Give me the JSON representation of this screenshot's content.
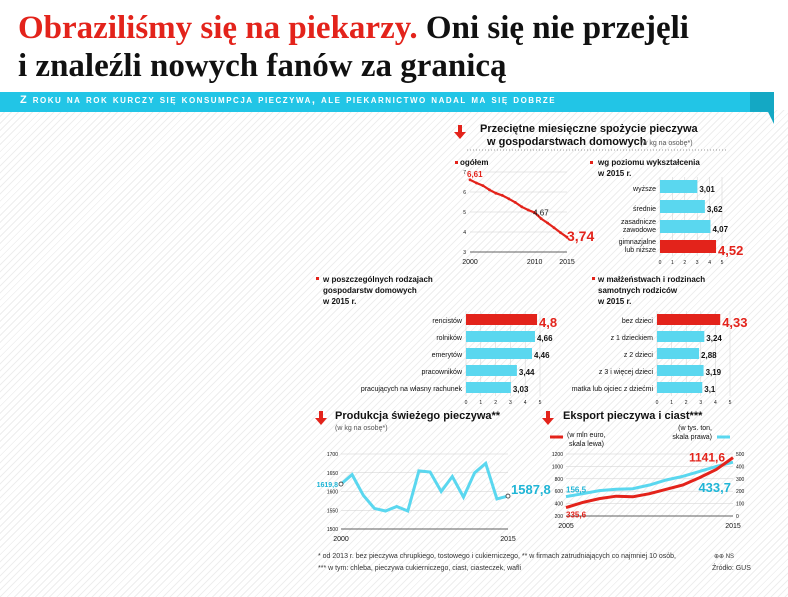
{
  "headline": {
    "red": "Obraziliśmy się na piekarzy.",
    "black1": "Oni się nie przejęli",
    "black2": "i znaleźli nowych fanów za granicą"
  },
  "subtitle": "Z roku na rok kurczy się konsumpcja pieczywa, ale piekarnictwo nadal ma się dobrze",
  "section": {
    "title1": "Przeciętne miesięczne spożycie pieczywa",
    "title2": "w gospodarstwach domowych",
    "unit": "(w kg na osobę*)"
  },
  "footnotes": [
    "* od 2013 r. bez pieczywa chrupkiego, tostowego i cukierniczego, ** w firmach zatrudniających co najmniej 10 osób,",
    "*** w tym: chleba, pieczywa cukierniczego, ciast, ciasteczek, wafli"
  ],
  "credit": "⊕⊕ NS",
  "source": "Źródło: GUS",
  "colors": {
    "red": "#e3231b",
    "cyan": "#5ad7ef",
    "ribbon": "#22c5e6"
  },
  "chart_data": [
    {
      "id": "ogolem",
      "type": "line",
      "title": "ogółem",
      "x": [
        2000,
        2001,
        2002,
        2003,
        2004,
        2005,
        2006,
        2007,
        2008,
        2009,
        2010,
        2011,
        2012,
        2013,
        2014,
        2015
      ],
      "values": [
        6.61,
        6.45,
        6.32,
        6.11,
        5.94,
        5.83,
        5.66,
        5.48,
        5.26,
        5.1,
        4.97,
        4.67,
        4.45,
        4.21,
        3.97,
        3.74
      ],
      "xticks": [
        "2000",
        "2010",
        "2015"
      ],
      "yticks": [
        "3",
        "4",
        "5",
        "6",
        "7"
      ],
      "ylim": [
        3,
        7
      ],
      "labels": [
        {
          "x": 2000,
          "text": "6,61"
        },
        {
          "x": 2011,
          "text": "4,67"
        },
        {
          "x": 2015,
          "text": "3,74"
        }
      ],
      "color": "#e3231b"
    },
    {
      "id": "wyksztalcenie",
      "type": "bar",
      "title": "wg poziomu wykształcenia",
      "subtitle": "w 2015 r.",
      "categories": [
        "wyższe",
        "średnie",
        "zasadnicze zawodowe",
        "gimnazjalne lub niższe"
      ],
      "values": [
        3.01,
        3.62,
        4.07,
        4.52
      ],
      "value_labels": [
        "3,01",
        "3,62",
        "4,07",
        "4,52"
      ],
      "highlight": 3,
      "xlim": [
        0,
        5
      ],
      "ticks": [
        "0",
        "1",
        "2",
        "3",
        "4",
        "5"
      ]
    },
    {
      "id": "gospodarstwa",
      "type": "bar",
      "title": "w poszczególnych rodzajach gospodarstw domowych",
      "subtitle": "w 2015 r.",
      "categories": [
        "rencistów",
        "rolników",
        "emerytów",
        "pracowników",
        "pracujących na własny rachunek"
      ],
      "values": [
        4.8,
        4.66,
        4.46,
        3.44,
        3.03
      ],
      "value_labels": [
        "4,8",
        "4,66",
        "4,46",
        "3,44",
        "3,03"
      ],
      "highlight": 0,
      "xlim": [
        0,
        5
      ],
      "ticks": [
        "0",
        "1",
        "2",
        "3",
        "4",
        "5"
      ]
    },
    {
      "id": "malzenstwa",
      "type": "bar",
      "title": "w małżeństwach i rodzinach samotnych rodziców",
      "subtitle": "w 2015 r.",
      "categories": [
        "bez dzieci",
        "z 1 dzieckiem",
        "z 2 dzieci",
        "z 3 i więcej dzieci",
        "matka lub ojciec z dziećmi"
      ],
      "values": [
        4.33,
        3.24,
        2.88,
        3.19,
        3.1
      ],
      "value_labels": [
        "4,33",
        "3,24",
        "2,88",
        "3,19",
        "3,1"
      ],
      "highlight": 0,
      "xlim": [
        0,
        5
      ],
      "ticks": [
        "0",
        "1",
        "2",
        "3",
        "4",
        "5"
      ]
    },
    {
      "id": "produkcja",
      "type": "line",
      "title": "Produkcja świeżego pieczywa**",
      "unit": "(w kg na osobę*)",
      "x": [
        2000,
        2001,
        2002,
        2003,
        2004,
        2005,
        2006,
        2007,
        2008,
        2009,
        2010,
        2011,
        2012,
        2013,
        2014,
        2015
      ],
      "values": [
        1619.8,
        1645,
        1590,
        1555,
        1548,
        1560,
        1548,
        1655,
        1652,
        1600,
        1640,
        1585,
        1650,
        1675,
        1580,
        1587.8
      ],
      "xticks": [
        "2000",
        "2015"
      ],
      "yticks": [
        "1500",
        "1550",
        "1600",
        "1650",
        "1700"
      ],
      "ylim": [
        1500,
        1700
      ],
      "labels": [
        {
          "x": 2000,
          "text": "1619,8"
        },
        {
          "x": 2015,
          "text": "1587,8"
        }
      ],
      "color": "#5ad7ef"
    },
    {
      "id": "eksport",
      "type": "line",
      "title": "Eksport pieczywa i ciast***",
      "xticks": [
        "2005",
        "2015"
      ],
      "x": [
        2005,
        2006,
        2007,
        2008,
        2009,
        2010,
        2011,
        2012,
        2013,
        2014,
        2015
      ],
      "series": [
        {
          "name": "(w mln euro, skala lewa)",
          "axis": "left",
          "color": "#e3231b",
          "values": [
            335.6,
            420,
            480,
            520,
            510,
            560,
            630,
            700,
            820,
            950,
            1141.6
          ],
          "first_label": "335,6",
          "last_label": "1141,6"
        },
        {
          "name": "(w tys. ton, skala prawa)",
          "axis": "right",
          "color": "#5ad7ef",
          "values": [
            156.5,
            180,
            205,
            215,
            220,
            250,
            290,
            320,
            360,
            400,
            433.7
          ],
          "first_label": "156,5",
          "last_label": "433,7"
        }
      ],
      "left_axis": {
        "ylim": [
          200,
          1200
        ],
        "ticks": [
          "200",
          "400",
          "600",
          "800",
          "1000",
          "1200"
        ]
      },
      "right_axis": {
        "ylim": [
          0,
          500
        ],
        "ticks": [
          "0",
          "100",
          "200",
          "300",
          "400",
          "500"
        ]
      }
    }
  ]
}
